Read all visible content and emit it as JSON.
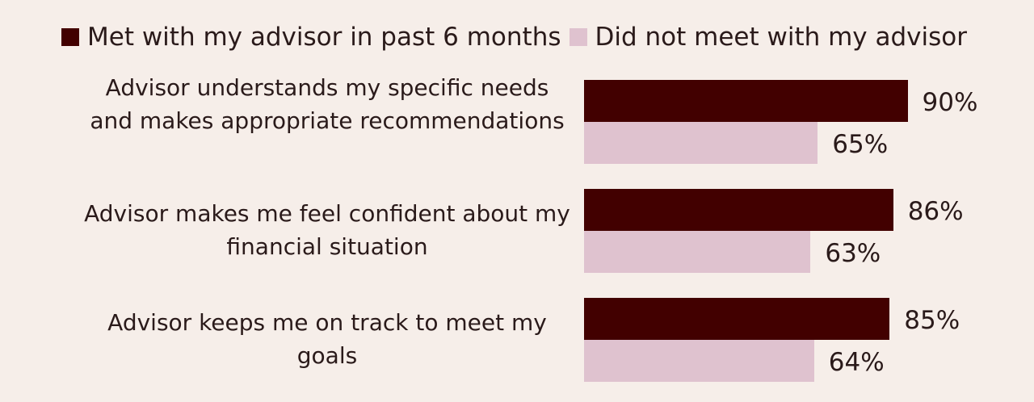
{
  "chart_data": {
    "type": "bar",
    "orientation": "horizontal",
    "categories": [
      "Advisor understands my specific needs and makes appropriate recommendations",
      "Advisor makes me feel confident about my financial situation",
      "Advisor keeps me on track to meet my goals"
    ],
    "series": [
      {
        "name": "Met with my advisor in past 6 months",
        "values": [
          90,
          86,
          85
        ],
        "color": "#420000"
      },
      {
        "name": "Did not meet with my advisor",
        "values": [
          65,
          63,
          64
        ],
        "color": "#dfc2cf"
      }
    ],
    "value_labels": [
      [
        "90%",
        "86%",
        "85%"
      ],
      [
        "65%",
        "63%",
        "64%"
      ]
    ],
    "unit": "%",
    "xlim": [
      0,
      100
    ],
    "grid": false,
    "legend_position": "top"
  }
}
